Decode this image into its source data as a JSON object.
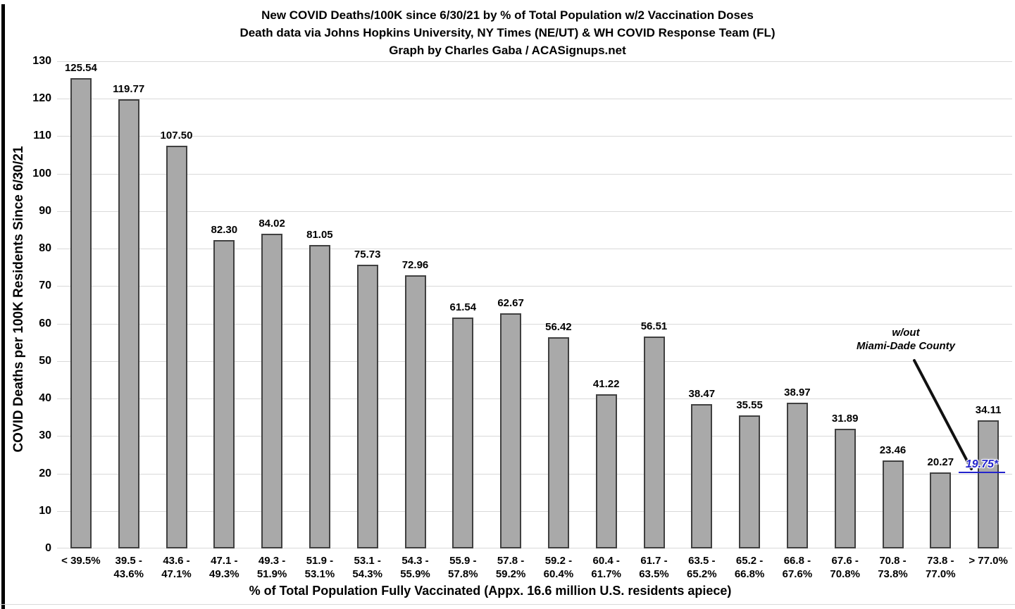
{
  "chart_data": {
    "type": "bar",
    "title": "New COVID Deaths/100K since 6/30/21 by % of Total Population w/2 Vaccination Doses",
    "subtitle": "Death data via Johns Hopkins University, NY Times (NE/UT) & WH COVID Response Team (FL)",
    "credit": "Graph by Charles Gaba / ACASignups.net",
    "ylabel": "COVID Deaths per 100K Residents Since 6/30/21",
    "xlabel": "% of Total Population Fully Vaccinated (Appx. 16.6 million U.S. residents apiece)",
    "ylim": [
      0,
      130
    ],
    "ytick_step": 10,
    "grid": true,
    "legend": "none",
    "categories": [
      [
        "< 39.5%"
      ],
      [
        "39.5 -",
        "43.6%"
      ],
      [
        "43.6 -",
        "47.1%"
      ],
      [
        "47.1 -",
        "49.3%"
      ],
      [
        "49.3 -",
        "51.9%"
      ],
      [
        "51.9 -",
        "53.1%"
      ],
      [
        "53.1 -",
        "54.3%"
      ],
      [
        "54.3 -",
        "55.9%"
      ],
      [
        "55.9 -",
        "57.8%"
      ],
      [
        "57.8 -",
        "59.2%"
      ],
      [
        "59.2 -",
        "60.4%"
      ],
      [
        "60.4 -",
        "61.7%"
      ],
      [
        "61.7 -",
        "63.5%"
      ],
      [
        "63.5 -",
        "65.2%"
      ],
      [
        "65.2 -",
        "66.8%"
      ],
      [
        "66.8 -",
        "67.6%"
      ],
      [
        "67.6 -",
        "70.8%"
      ],
      [
        "70.8 -",
        "73.8%"
      ],
      [
        "73.8 -",
        "77.0%"
      ],
      [
        "> 77.0%"
      ]
    ],
    "values": [
      125.54,
      119.77,
      107.5,
      82.3,
      84.02,
      81.05,
      75.73,
      72.96,
      61.54,
      62.67,
      56.42,
      41.22,
      56.51,
      38.47,
      35.55,
      38.97,
      31.89,
      23.46,
      20.27,
      34.11
    ],
    "value_labels": [
      "125.54",
      "119.77",
      "107.50",
      "82.30",
      "84.02",
      "81.05",
      "75.73",
      "72.96",
      "61.54",
      "62.67",
      "56.42",
      "41.22",
      "56.51",
      "38.47",
      "35.55",
      "38.97",
      "31.89",
      "23.46",
      "20.27",
      "34.11"
    ],
    "annotation": {
      "line1": "w/out",
      "line2": "Miami-Dade County",
      "callout_value": "19.75*"
    },
    "colors": {
      "bar_fill": "#a9a9a9",
      "bar_border": "#404040",
      "gridline": "#d9d9d9",
      "text": "#000000",
      "callout_blue": "#2424cc",
      "background": "#ffffff",
      "border_strip": "#000000"
    }
  }
}
